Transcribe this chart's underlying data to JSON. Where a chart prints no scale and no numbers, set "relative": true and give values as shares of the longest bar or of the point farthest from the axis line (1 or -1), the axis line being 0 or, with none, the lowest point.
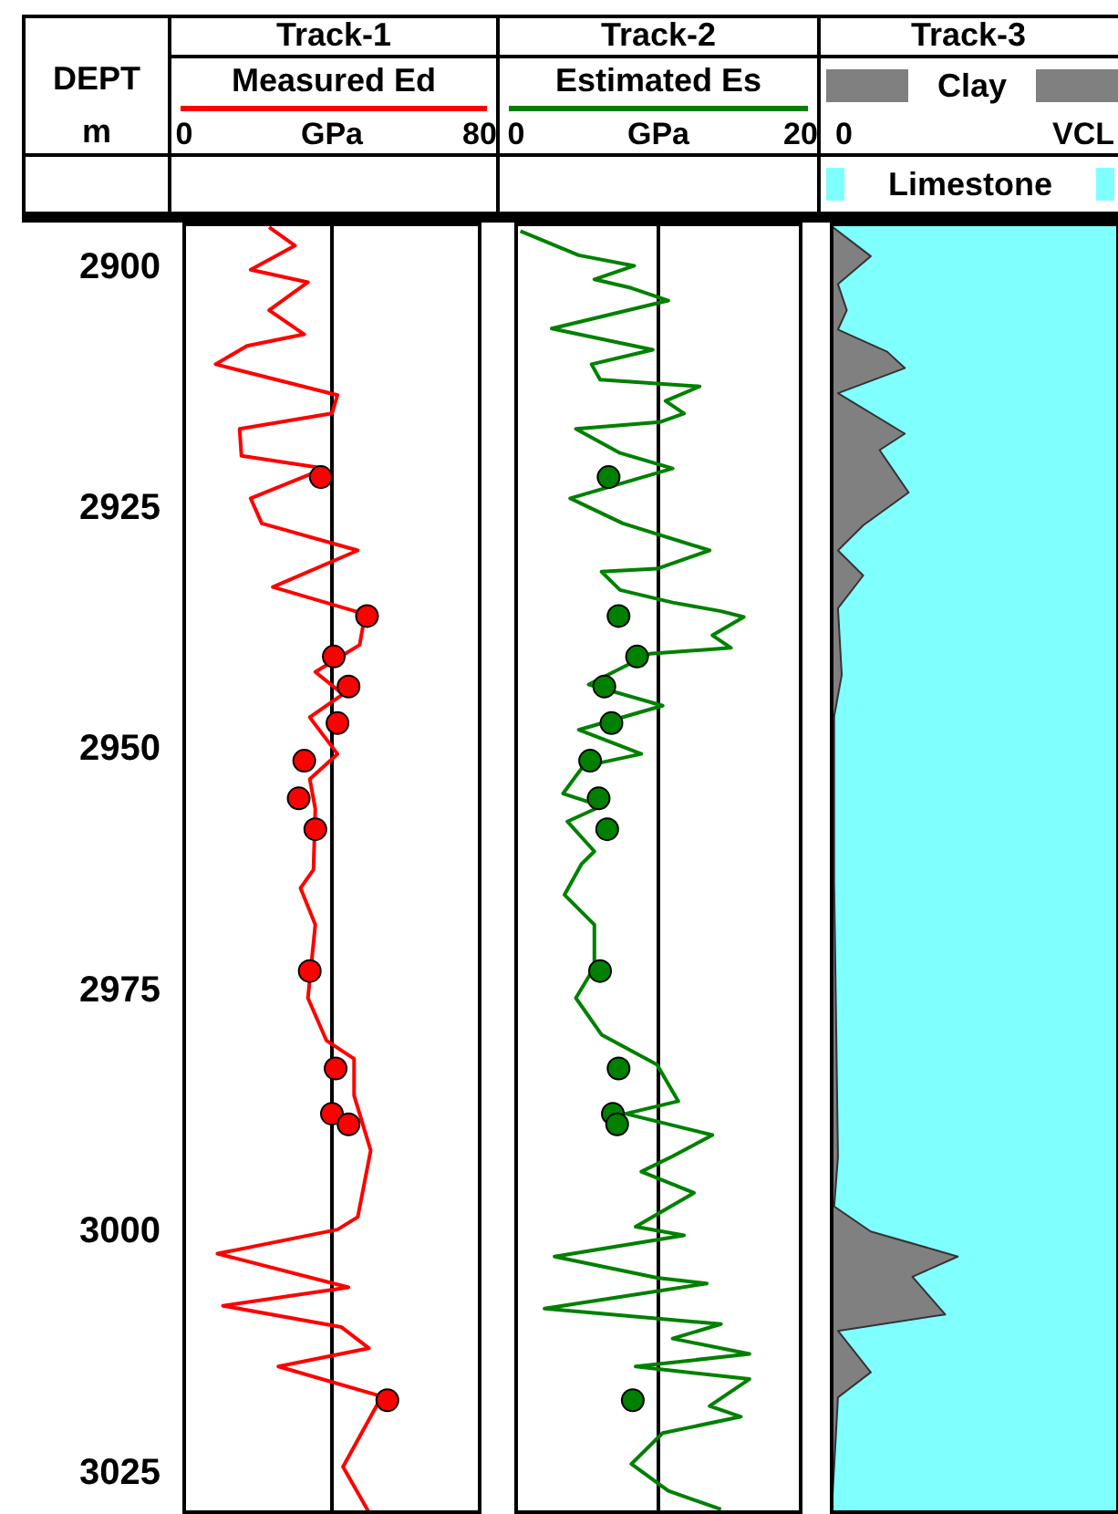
{
  "chart_data": [
    {
      "type": "line",
      "title": "Track-1",
      "orientation": "horizontal",
      "ylabel": "DEPT",
      "annotations": [
        "m"
      ],
      "xlabel": "GPa",
      "xlim": [
        0,
        80
      ],
      "xticks": [
        0,
        {
          "value": 40,
          "label": null
        },
        80
      ],
      "ylim": [
        3029,
        2895.5
      ],
      "yticks": [
        2900,
        2925,
        2950,
        2975,
        3000,
        3025
      ],
      "grid": "x",
      "legend": "top",
      "series": [
        {
          "name": "Measured Ed",
          "color": "#ff0000",
          "marker": "none",
          "x": [
            2895.8,
            2897.7,
            2900.2,
            2901.5,
            2904.4,
            2906.9,
            2908.1,
            2910,
            2913.2,
            2915.1,
            2916.7,
            2919.5,
            2920.8,
            2923.9,
            2926.5,
            2929.3,
            2933.1,
            2935.9,
            2939.1,
            2941.9,
            2944.2,
            2946.6,
            2950.4,
            2953,
            2956.1,
            2962.4,
            2964.3,
            2968.1,
            2975.7,
            2980.1,
            2982,
            2985.8,
            2991.5,
            2998.4,
            2999.7,
            3002.2,
            3005.7,
            3007.6,
            3009.8,
            3012,
            3013.9,
            3017,
            3024.3,
            3029
          ],
          "values": [
            23,
            30,
            18,
            33.5,
            23,
            32.5,
            17,
            8.5,
            41.5,
            40,
            15,
            15.5,
            38,
            18,
            21,
            47,
            24,
            49,
            47.5,
            35.5,
            43,
            34,
            41.5,
            34,
            35.5,
            35,
            31.5,
            35.5,
            33.5,
            38.5,
            46,
            46,
            50.5,
            47,
            41.5,
            9,
            44.5,
            10.5,
            42.5,
            50,
            25.5,
            53.5,
            43,
            50
          ]
        },
        {
          "type": "scatter",
          "color": "#ff0000",
          "marker": "circle",
          "x": [
            2921.7,
            2936.1,
            2940.3,
            2943.4,
            2947.2,
            2951.1,
            2955,
            2958.2,
            2972.9,
            2983,
            2987.7,
            2988.8,
            3017.4
          ],
          "values": [
            37,
            49.5,
            40.5,
            44.5,
            41.5,
            32.5,
            31,
            35.5,
            34,
            41,
            40,
            44.5,
            55
          ]
        }
      ]
    },
    {
      "type": "line",
      "title": "Track-2",
      "orientation": "horizontal",
      "xlabel": "GPa",
      "xlim": [
        0,
        20
      ],
      "xticks": [
        0,
        {
          "value": 10,
          "label": null
        },
        20
      ],
      "ylim": [
        3029,
        2895.5
      ],
      "yticks": [
        2900,
        2925,
        2950,
        2975,
        3000,
        3025
      ],
      "tick_labels": "x",
      "grid": "x",
      "legend": "top",
      "series": [
        {
          "name": "Estimated Es",
          "color": "#008000",
          "marker": "none",
          "x": [
            2896.2,
            2898.7,
            2899.8,
            2901.2,
            2902.1,
            2903.4,
            2906.3,
            2908.5,
            2910,
            2911.6,
            2912.3,
            2913.8,
            2915.1,
            2916,
            2916.7,
            2919.2,
            2920.8,
            2923.9,
            2926.5,
            2929.3,
            2931.2,
            2931.5,
            2933.4,
            2934.7,
            2935.6,
            2936.2,
            2938.1,
            2939.4,
            2940,
            2943.2,
            2945.4,
            2947.9,
            2950.4,
            2951.7,
            2954.5,
            2955.8,
            2957.4,
            2960.5,
            2961.8,
            2965,
            2968.1,
            2972.5,
            2975.7,
            2979.5,
            2982.6,
            2986.4,
            2987.7,
            2989.9,
            2992.1,
            2993.7,
            2995.9,
            2999.4,
            3000.3,
            3002.5,
            3004.7,
            3005.3,
            3007.9,
            3009.5,
            3011,
            3012.6,
            3013.9,
            3015.2,
            3018,
            3019.1,
            3020.8,
            3024,
            3026.8,
            3028.7
          ],
          "values": [
            0.3,
            4.4,
            8.3,
            5.5,
            8.1,
            10.7,
            2.5,
            9.6,
            5.3,
            5.9,
            12.9,
            10.5,
            11.8,
            10.1,
            4.2,
            7.3,
            11,
            3.8,
            7.5,
            13.6,
            9.9,
            6,
            7.3,
            11,
            14.4,
            16,
            13.8,
            15.1,
            9.4,
            5.1,
            10.3,
            4.4,
            8.8,
            4.7,
            3.3,
            6,
            3.6,
            5.5,
            4.6,
            3.4,
            5.5,
            5.5,
            4.2,
            6,
            9.9,
            11.4,
            7.7,
            13.8,
            11,
            8.8,
            12.5,
            8.4,
            11.8,
            2.7,
            9.9,
            13.4,
            2,
            14.4,
            11,
            16.4,
            8.4,
            16.4,
            13.6,
            15.8,
            10.3,
            8.1,
            10.7,
            14.4
          ]
        },
        {
          "type": "scatter",
          "color": "#008000",
          "marker": "circle",
          "x": [
            2921.7,
            2936.1,
            2940.3,
            2943.4,
            2947.2,
            2951.1,
            2955,
            2958.2,
            2972.9,
            2983,
            2987.7,
            2988.8,
            3017.4
          ],
          "values": [
            6.5,
            7.2,
            8.5,
            6.2,
            6.7,
            5.2,
            5.8,
            6.4,
            5.9,
            7.2,
            6.8,
            7.1,
            8.2
          ]
        }
      ]
    },
    {
      "type": "area",
      "title": "Track-3",
      "orientation": "horizontal",
      "relative": true,
      "xlabel": "VCL",
      "annotations": [
        "0"
      ],
      "ylim": [
        3029,
        2895.5
      ],
      "yticks": [
        2900,
        2925,
        2950,
        2975,
        3000,
        3025
      ],
      "tick_labels": "x",
      "legend": "top",
      "bands": [
        {
          "axis": "y",
          "from": 2895.5,
          "to": 3029,
          "label": "Limestone",
          "color": "#80ffff"
        }
      ],
      "series": [
        {
          "name": "Clay",
          "color": "#808080",
          "x": [
            2895.7,
            2898.8,
            2901.7,
            2904.4,
            2906.4,
            2908.7,
            2910.4,
            2913,
            2917.2,
            2918.9,
            2923.3,
            2926.7,
            2929.3,
            2931.9,
            2935.3,
            2942.2,
            2946.5,
            2963.7,
            2992.2,
            2997.3,
            2999.9,
            3002.5,
            3004.6,
            3008.5,
            3010.2,
            3014.5,
            3017.1,
            3029
          ],
          "values": [
            0,
            0.31,
            0.05,
            0.12,
            0.05,
            0.44,
            0.58,
            0.05,
            0.58,
            0.38,
            0.61,
            0.25,
            0.05,
            0.25,
            0.05,
            0.08,
            0.02,
            0.02,
            0.05,
            0.02,
            0.31,
            1,
            0.64,
            0.9,
            0.05,
            0.31,
            0.05,
            0
          ]
        }
      ]
    }
  ]
}
